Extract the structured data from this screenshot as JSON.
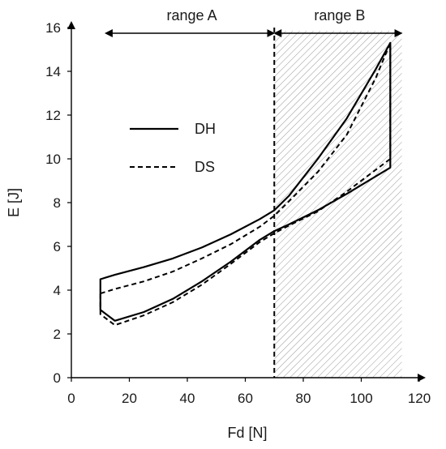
{
  "chart_data": {
    "type": "line",
    "xlabel": "Fd [N]",
    "ylabel": "E [J]",
    "xlim": [
      0,
      120
    ],
    "ylim": [
      0,
      16
    ],
    "xticks": [
      "0",
      "20",
      "40",
      "60",
      "80",
      "100",
      "120"
    ],
    "yticks": [
      "0",
      "2",
      "4",
      "6",
      "8",
      "10",
      "12",
      "14",
      "16"
    ],
    "grid": false,
    "legend_position": "upper-left",
    "ranges": [
      {
        "label": "range A",
        "x_start": 12,
        "x_end": 70
      },
      {
        "label": "range B",
        "x_start": 70,
        "x_end": 114,
        "shaded": true
      }
    ],
    "divider_x": 70,
    "series": [
      {
        "name": "DH",
        "style": "solid",
        "upper": {
          "x": [
            10,
            15,
            25,
            35,
            45,
            55,
            65,
            70,
            75,
            85,
            95,
            105,
            110
          ],
          "y": [
            4.5,
            4.7,
            5.05,
            5.45,
            5.95,
            6.55,
            7.25,
            7.65,
            8.3,
            10.0,
            11.85,
            14.1,
            15.3
          ]
        },
        "lower": {
          "x": [
            10,
            15,
            25,
            35,
            45,
            55,
            65,
            70,
            75,
            85,
            95,
            105,
            110
          ],
          "y": [
            3.1,
            2.6,
            3.0,
            3.6,
            4.4,
            5.3,
            6.3,
            6.7,
            7.0,
            7.65,
            8.4,
            9.2,
            9.6
          ]
        }
      },
      {
        "name": "DS",
        "style": "dashed",
        "upper": {
          "x": [
            10,
            15,
            25,
            35,
            45,
            55,
            65,
            70,
            75,
            85,
            95,
            105,
            110
          ],
          "y": [
            3.85,
            4.05,
            4.4,
            4.85,
            5.45,
            6.1,
            6.9,
            7.4,
            8.05,
            9.4,
            11.1,
            13.7,
            15.3
          ]
        },
        "lower": {
          "x": [
            10,
            15,
            25,
            35,
            45,
            55,
            65,
            70,
            75,
            85,
            95,
            105,
            110
          ],
          "y": [
            2.9,
            2.4,
            2.85,
            3.45,
            4.25,
            5.2,
            6.2,
            6.6,
            6.95,
            7.6,
            8.5,
            9.5,
            10.0
          ]
        }
      }
    ]
  }
}
